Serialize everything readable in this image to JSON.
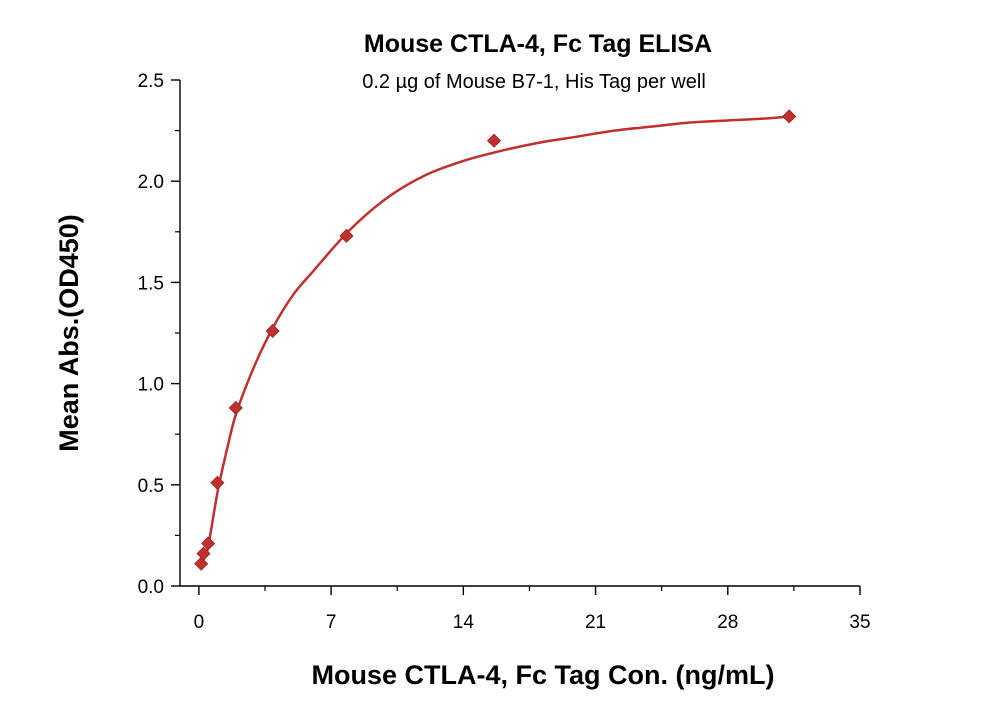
{
  "chart_data": {
    "type": "scatter",
    "title": "Mouse CTLA-4, Fc Tag ELISA",
    "subtitle": "0.2 µg of Mouse B7-1, His Tag per well",
    "xlabel": "Mouse CTLA-4, Fc Tag Con. (ng/mL)",
    "ylabel": "Mean Abs.(OD450)",
    "xlim": [
      -1.0,
      35
    ],
    "ylim": [
      0,
      2.5
    ],
    "x_ticks": [
      0,
      7,
      14,
      21,
      28,
      35
    ],
    "x_tick_labels": [
      "0",
      "7",
      "14",
      "21",
      "28",
      "35"
    ],
    "y_ticks": [
      0.0,
      0.5,
      1.0,
      1.5,
      2.0,
      2.5
    ],
    "y_tick_labels": [
      "0.0",
      "0.5",
      "1.0",
      "1.5",
      "2.0",
      "2.5"
    ],
    "grid": false,
    "series": [
      {
        "color": "#c0302e",
        "marker": "diamond",
        "x": [
          0.122,
          0.244,
          0.488,
          0.977,
          1.953,
          3.906,
          7.813,
          15.625,
          31.25
        ],
        "y": [
          0.11,
          0.16,
          0.21,
          0.51,
          0.88,
          1.26,
          1.73,
          2.2,
          2.32
        ]
      }
    ],
    "fit_curve": {
      "color": "#c0302e",
      "x": [
        0.05,
        0.25,
        0.5,
        1.0,
        1.5,
        2.0,
        3.0,
        4.0,
        5.0,
        6.0,
        8.0,
        10.0,
        12.0,
        14.0,
        16.0,
        18.0,
        20.0,
        22.0,
        24.0,
        26.0,
        28.0,
        30.0,
        31.25
      ],
      "y": [
        0.09,
        0.13,
        0.2,
        0.47,
        0.68,
        0.86,
        1.1,
        1.29,
        1.44,
        1.55,
        1.76,
        1.92,
        2.03,
        2.1,
        2.15,
        2.19,
        2.22,
        2.25,
        2.27,
        2.29,
        2.3,
        2.31,
        2.32
      ]
    }
  }
}
